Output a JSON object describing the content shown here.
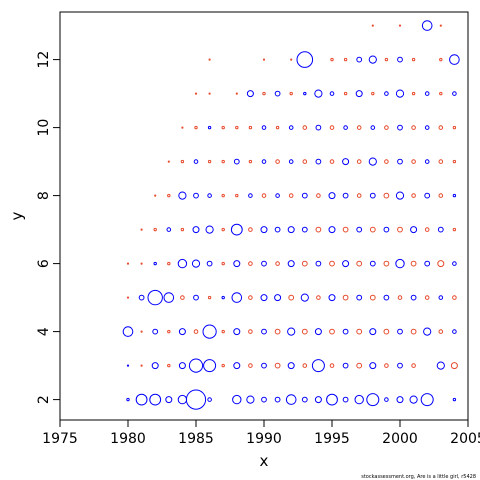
{
  "chart_data": {
    "type": "scatter",
    "title": "",
    "xlabel": "x",
    "ylabel": "y",
    "xlim": [
      1975,
      2005
    ],
    "ylim": [
      1.4,
      13.4
    ],
    "x_ticks": [
      "1975",
      "1980",
      "1985",
      "1990",
      "1995",
      "2000",
      "2005"
    ],
    "y_ticks": [
      "2",
      "4",
      "6",
      "8",
      "10",
      "12"
    ],
    "grid": false,
    "legend": "none",
    "credit": "stockassessment.org, Are is a little girl, r5428",
    "series": [
      {
        "color": "#0000ff",
        "marker": "open-circle",
        "points": [
          [
            1980,
            2,
            0.2
          ],
          [
            1981,
            2,
            0.9
          ],
          [
            1982,
            2,
            0.9
          ],
          [
            1983,
            2,
            0.5
          ],
          [
            1984,
            2,
            0.7
          ],
          [
            1985,
            2,
            1.6
          ],
          [
            1986,
            2,
            0.3
          ],
          [
            1988,
            2,
            0.7
          ],
          [
            1989,
            2,
            0.6
          ],
          [
            1990,
            2,
            0.4
          ],
          [
            1991,
            2,
            0.4
          ],
          [
            1992,
            2,
            0.8
          ],
          [
            1993,
            2,
            0.4
          ],
          [
            1994,
            2,
            0.5
          ],
          [
            1995,
            2,
            0.9
          ],
          [
            1996,
            2,
            0.4
          ],
          [
            1997,
            2,
            0.7
          ],
          [
            1998,
            2,
            1.0
          ],
          [
            1999,
            2,
            0.3
          ],
          [
            2000,
            2,
            0.5
          ],
          [
            2001,
            2,
            0.6
          ],
          [
            2002,
            2,
            1.0
          ],
          [
            2004,
            2,
            0.2
          ],
          [
            1980,
            3,
            0.1
          ],
          [
            1982,
            3,
            0.5
          ],
          [
            1984,
            3,
            0.5
          ],
          [
            1985,
            3,
            1.1
          ],
          [
            1986,
            3,
            1.0
          ],
          [
            1988,
            3,
            0.5
          ],
          [
            1990,
            3,
            0.4
          ],
          [
            1992,
            3,
            0.5
          ],
          [
            1994,
            3,
            1.0
          ],
          [
            1996,
            3,
            0.4
          ],
          [
            1998,
            3,
            0.5
          ],
          [
            2000,
            3,
            0.4
          ],
          [
            2003,
            3,
            0.6
          ],
          [
            1980,
            4,
            0.8
          ],
          [
            1982,
            4,
            0.4
          ],
          [
            1984,
            4,
            0.5
          ],
          [
            1986,
            4,
            1.1
          ],
          [
            1988,
            4,
            0.5
          ],
          [
            1990,
            4,
            0.4
          ],
          [
            1992,
            4,
            0.6
          ],
          [
            1994,
            4,
            0.5
          ],
          [
            1996,
            4,
            0.4
          ],
          [
            1998,
            4,
            0.5
          ],
          [
            2000,
            4,
            0.4
          ],
          [
            2002,
            4,
            0.6
          ],
          [
            2004,
            4,
            0.3
          ],
          [
            1981,
            5,
            0.4
          ],
          [
            1982,
            5,
            1.2
          ],
          [
            1983,
            5,
            0.8
          ],
          [
            1985,
            5,
            0.4
          ],
          [
            1987,
            5,
            0.2
          ],
          [
            1988,
            5,
            0.8
          ],
          [
            1990,
            5,
            0.5
          ],
          [
            1991,
            5,
            0.5
          ],
          [
            1993,
            5,
            0.6
          ],
          [
            1995,
            5,
            0.5
          ],
          [
            1997,
            5,
            0.4
          ],
          [
            1999,
            5,
            0.4
          ],
          [
            2001,
            5,
            0.4
          ],
          [
            2003,
            5,
            0.3
          ],
          [
            1982,
            6,
            0.2
          ],
          [
            1984,
            6,
            0.7
          ],
          [
            1985,
            6,
            0.6
          ],
          [
            1986,
            6,
            0.4
          ],
          [
            1988,
            6,
            0.5
          ],
          [
            1990,
            6,
            0.4
          ],
          [
            1992,
            6,
            0.5
          ],
          [
            1994,
            6,
            0.4
          ],
          [
            1996,
            6,
            0.5
          ],
          [
            1998,
            6,
            0.4
          ],
          [
            2000,
            6,
            0.7
          ],
          [
            2002,
            6,
            0.4
          ],
          [
            2004,
            6,
            0.3
          ],
          [
            1983,
            7,
            0.3
          ],
          [
            1985,
            7,
            0.5
          ],
          [
            1986,
            7,
            0.6
          ],
          [
            1988,
            7,
            0.9
          ],
          [
            1990,
            7,
            0.5
          ],
          [
            1991,
            7,
            0.4
          ],
          [
            1992,
            7,
            0.5
          ],
          [
            1993,
            7,
            0.4
          ],
          [
            1995,
            7,
            0.5
          ],
          [
            1997,
            7,
            0.4
          ],
          [
            1999,
            7,
            0.4
          ],
          [
            2001,
            7,
            0.5
          ],
          [
            2003,
            7,
            0.4
          ],
          [
            1984,
            8,
            0.6
          ],
          [
            1985,
            8,
            0.4
          ],
          [
            1986,
            8,
            0.3
          ],
          [
            1989,
            8,
            0.3
          ],
          [
            1991,
            8,
            0.3
          ],
          [
            1993,
            8,
            0.4
          ],
          [
            1995,
            8,
            0.5
          ],
          [
            1996,
            8,
            0.4
          ],
          [
            1998,
            8,
            0.4
          ],
          [
            2000,
            8,
            0.6
          ],
          [
            2002,
            8,
            0.4
          ],
          [
            2004,
            8,
            0.2
          ],
          [
            1985,
            9,
            0.3
          ],
          [
            1988,
            9,
            0.4
          ],
          [
            1990,
            9,
            0.3
          ],
          [
            1992,
            9,
            0.3
          ],
          [
            1994,
            9,
            0.4
          ],
          [
            1996,
            9,
            0.5
          ],
          [
            1998,
            9,
            0.6
          ],
          [
            2000,
            9,
            0.4
          ],
          [
            2002,
            9,
            0.3
          ],
          [
            1986,
            10,
            0.2
          ],
          [
            1990,
            10,
            0.3
          ],
          [
            1992,
            10,
            0.3
          ],
          [
            1994,
            10,
            0.4
          ],
          [
            1996,
            10,
            0.3
          ],
          [
            1998,
            10,
            0.3
          ],
          [
            2000,
            10,
            0.4
          ],
          [
            2002,
            10,
            0.3
          ],
          [
            1989,
            11,
            0.5
          ],
          [
            1991,
            11,
            0.4
          ],
          [
            1993,
            11,
            0.2
          ],
          [
            1994,
            11,
            0.6
          ],
          [
            1995,
            11,
            0.3
          ],
          [
            1997,
            11,
            0.5
          ],
          [
            1999,
            11,
            0.3
          ],
          [
            2000,
            11,
            0.6
          ],
          [
            2002,
            11,
            0.3
          ],
          [
            2004,
            11,
            0.3
          ],
          [
            1993,
            12,
            1.3
          ],
          [
            1997,
            12,
            0.4
          ],
          [
            1998,
            12,
            0.6
          ],
          [
            2000,
            12,
            0.4
          ],
          [
            2004,
            12,
            0.8
          ],
          [
            2002,
            13,
            0.8
          ]
        ]
      },
      {
        "color": "#e8492a",
        "marker": "open-circle",
        "points": [
          [
            1981,
            3,
            0.1
          ],
          [
            1983,
            3,
            0.2
          ],
          [
            1987,
            3,
            0.2
          ],
          [
            1989,
            3,
            0.3
          ],
          [
            1991,
            3,
            0.4
          ],
          [
            1993,
            3,
            0.3
          ],
          [
            1995,
            3,
            0.3
          ],
          [
            1997,
            3,
            0.4
          ],
          [
            1999,
            3,
            0.3
          ],
          [
            2001,
            3,
            0.3
          ],
          [
            2004,
            3,
            0.5
          ],
          [
            1981,
            4,
            0.1
          ],
          [
            1983,
            4,
            0.2
          ],
          [
            1985,
            4,
            0.3
          ],
          [
            1987,
            4,
            0.2
          ],
          [
            1989,
            4,
            0.3
          ],
          [
            1991,
            4,
            0.4
          ],
          [
            1993,
            4,
            0.4
          ],
          [
            1995,
            4,
            0.4
          ],
          [
            1997,
            4,
            0.4
          ],
          [
            1999,
            4,
            0.4
          ],
          [
            2001,
            4,
            0.4
          ],
          [
            2003,
            4,
            0.3
          ],
          [
            1980,
            5,
            0.1
          ],
          [
            1984,
            5,
            0.3
          ],
          [
            1986,
            5,
            0.2
          ],
          [
            1989,
            5,
            0.3
          ],
          [
            1992,
            5,
            0.4
          ],
          [
            1994,
            5,
            0.3
          ],
          [
            1996,
            5,
            0.4
          ],
          [
            1998,
            5,
            0.4
          ],
          [
            2000,
            5,
            0.3
          ],
          [
            2002,
            5,
            0.3
          ],
          [
            2004,
            5,
            0.3
          ],
          [
            1980,
            6,
            0.1
          ],
          [
            1981,
            6,
            0.1
          ],
          [
            1983,
            6,
            0.2
          ],
          [
            1987,
            6,
            0.2
          ],
          [
            1989,
            6,
            0.3
          ],
          [
            1991,
            6,
            0.3
          ],
          [
            1993,
            6,
            0.4
          ],
          [
            1995,
            6,
            0.4
          ],
          [
            1997,
            6,
            0.4
          ],
          [
            1999,
            6,
            0.4
          ],
          [
            2001,
            6,
            0.4
          ],
          [
            2003,
            6,
            0.5
          ],
          [
            1981,
            7,
            0.1
          ],
          [
            1982,
            7,
            0.2
          ],
          [
            1984,
            7,
            0.2
          ],
          [
            1987,
            7,
            0.2
          ],
          [
            1989,
            7,
            0.3
          ],
          [
            1994,
            7,
            0.4
          ],
          [
            1996,
            7,
            0.4
          ],
          [
            1998,
            7,
            0.4
          ],
          [
            2000,
            7,
            0.4
          ],
          [
            2002,
            7,
            0.3
          ],
          [
            2004,
            7,
            0.2
          ],
          [
            1982,
            8,
            0.1
          ],
          [
            1983,
            8,
            0.2
          ],
          [
            1987,
            8,
            0.2
          ],
          [
            1988,
            8,
            0.2
          ],
          [
            1990,
            8,
            0.3
          ],
          [
            1992,
            8,
            0.3
          ],
          [
            1994,
            8,
            0.3
          ],
          [
            1997,
            8,
            0.3
          ],
          [
            1999,
            8,
            0.4
          ],
          [
            2001,
            8,
            0.3
          ],
          [
            2003,
            8,
            0.3
          ],
          [
            1983,
            9,
            0.1
          ],
          [
            1984,
            9,
            0.2
          ],
          [
            1986,
            9,
            0.2
          ],
          [
            1987,
            9,
            0.2
          ],
          [
            1989,
            9,
            0.2
          ],
          [
            1991,
            9,
            0.3
          ],
          [
            1993,
            9,
            0.3
          ],
          [
            1995,
            9,
            0.3
          ],
          [
            1997,
            9,
            0.3
          ],
          [
            1999,
            9,
            0.3
          ],
          [
            2001,
            9,
            0.3
          ],
          [
            2003,
            9,
            0.3
          ],
          [
            2004,
            9,
            0.2
          ],
          [
            1984,
            10,
            0.1
          ],
          [
            1985,
            10,
            0.2
          ],
          [
            1987,
            10,
            0.2
          ],
          [
            1988,
            10,
            0.2
          ],
          [
            1989,
            10,
            0.2
          ],
          [
            1991,
            10,
            0.2
          ],
          [
            1993,
            10,
            0.3
          ],
          [
            1995,
            10,
            0.3
          ],
          [
            1997,
            10,
            0.3
          ],
          [
            1999,
            10,
            0.3
          ],
          [
            2001,
            10,
            0.3
          ],
          [
            2003,
            10,
            0.3
          ],
          [
            2004,
            10,
            0.2
          ],
          [
            1985,
            11,
            0.1
          ],
          [
            1986,
            11,
            0.1
          ],
          [
            1988,
            11,
            0.1
          ],
          [
            1990,
            11,
            0.2
          ],
          [
            1992,
            11,
            0.2
          ],
          [
            1996,
            11,
            0.2
          ],
          [
            1998,
            11,
            0.2
          ],
          [
            2001,
            11,
            0.2
          ],
          [
            2003,
            11,
            0.2
          ],
          [
            1986,
            12,
            0.1
          ],
          [
            1990,
            12,
            0.1
          ],
          [
            1992,
            12,
            0.1
          ],
          [
            1995,
            12,
            0.2
          ],
          [
            1996,
            12,
            0.2
          ],
          [
            1999,
            12,
            0.2
          ],
          [
            2001,
            12,
            0.2
          ],
          [
            2003,
            12,
            0.2
          ],
          [
            1998,
            13,
            0.1
          ],
          [
            2000,
            13,
            0.1
          ],
          [
            2003,
            13,
            0.1
          ]
        ]
      }
    ]
  }
}
